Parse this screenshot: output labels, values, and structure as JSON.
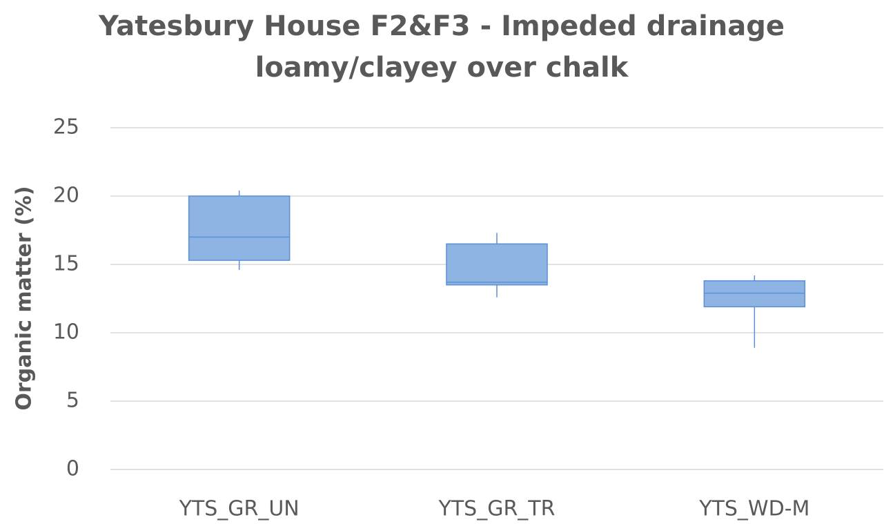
{
  "chart_data": {
    "type": "box",
    "title": [
      "Yatesbury House F2&F3 - Impeded drainage",
      "loamy/clayey over chalk"
    ],
    "y_label": "Organic matter (%)",
    "categories": [
      "YTS_GR_UN",
      "YTS_GR_TR",
      "YTS_WD-M"
    ],
    "min": [
      14.6,
      12.6,
      8.9
    ],
    "q1": [
      15.3,
      13.5,
      11.9
    ],
    "median": [
      17.0,
      13.7,
      12.9
    ],
    "q3": [
      20.0,
      16.5,
      13.8
    ],
    "max": [
      20.4,
      17.3,
      14.2
    ],
    "color": "#8db4e2",
    "edge_color": "#5b8fd6",
    "ylim": [
      0,
      25
    ],
    "yticks": [
      0,
      5,
      10,
      15,
      20,
      25
    ],
    "grid": true
  }
}
